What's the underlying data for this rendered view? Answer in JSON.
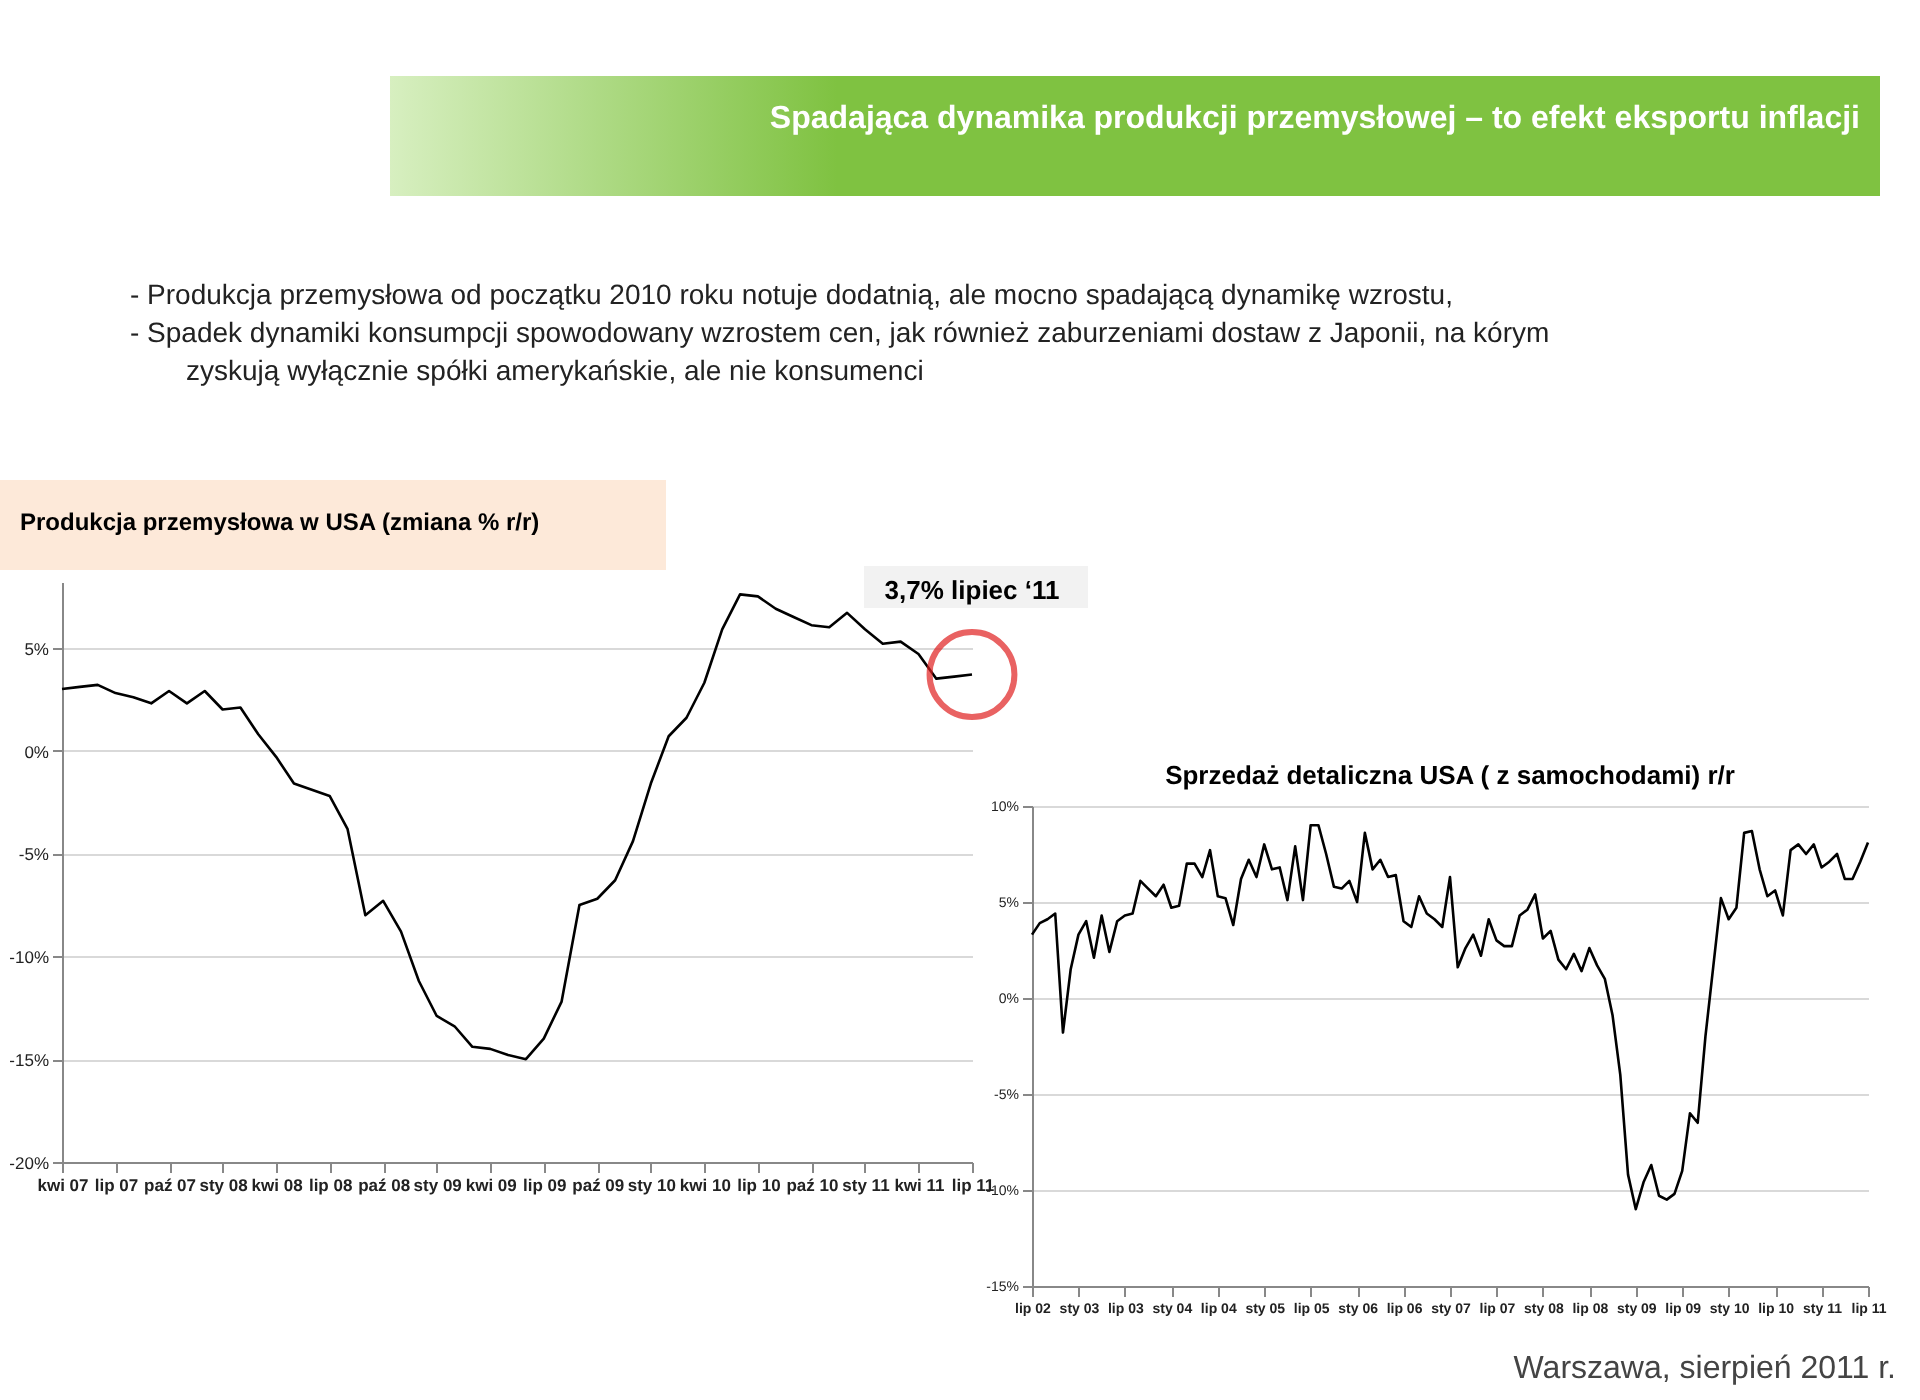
{
  "chart_data": [
    {
      "type": "line",
      "title": "Produkcja przemysłowa w USA (zmiana % r/r)",
      "annotations": [
        "Spadająca dynamika produkcji przemysłowej – to efekt eksportu inflacji",
        "- Produkcja przemysłowa od początku 2010 roku notuje dodatnią, ale mocno spadającą dynamikę wzrostu,",
        "- Spadek dynamiki konsumpcji  spowodowany wzrostem cen, jak również zaburzeniami dostaw z Japonii, na kórym zyskują wyłącznie spółki amerykańskie, ale nie konsumenci",
        {
          "text": "3,7% lipiec ‘11",
          "x": "lip 11",
          "y": 3.7
        },
        "Warszawa, sierpień 2011 r."
      ],
      "categories": [
        "kwi 07",
        null,
        null,
        "lip 07",
        null,
        null,
        "paź 07",
        null,
        null,
        "sty 08",
        null,
        null,
        "kwi 08",
        null,
        null,
        "lip 08",
        null,
        null,
        "paź 08",
        null,
        null,
        "sty 09",
        null,
        null,
        "kwi 09",
        null,
        null,
        "lip 09",
        null,
        null,
        "paź 09",
        null,
        null,
        "sty 10",
        null,
        null,
        "kwi 10",
        null,
        null,
        "lip 10",
        null,
        null,
        "paź 10",
        null,
        null,
        "sty 11",
        null,
        null,
        "kwi 11",
        null,
        null,
        "lip 11"
      ],
      "series": [
        {
          "color": "#000000",
          "values": [
            3.0,
            3.1,
            3.2,
            2.8,
            2.6,
            2.3,
            2.9,
            2.3,
            2.9,
            2.0,
            2.1,
            0.8,
            -0.3,
            -1.6,
            -1.9,
            -2.2,
            -3.8,
            -8.0,
            -7.3,
            -8.8,
            -11.2,
            -12.9,
            -13.4,
            -14.4,
            -14.5,
            -14.8,
            -15.0,
            -14.0,
            -12.2,
            -7.5,
            -7.2,
            -6.3,
            -4.4,
            -1.6,
            0.7,
            1.6,
            3.3,
            5.9,
            7.6,
            7.5,
            6.9,
            6.5,
            6.1,
            6.0,
            6.7,
            5.9,
            5.2,
            5.3,
            4.7,
            3.5,
            3.6,
            3.7
          ]
        }
      ],
      "ylim": [
        -20,
        8.2
      ],
      "yticks": [
        {
          "value": -20,
          "label": "-20%"
        },
        {
          "value": -15,
          "label": "-15%"
        },
        {
          "value": -10,
          "label": "-10%"
        },
        {
          "value": -5,
          "label": "-5%"
        },
        {
          "value": 0,
          "label": "0%"
        },
        {
          "value": 5,
          "label": "5%"
        }
      ],
      "grid": "y"
    },
    {
      "type": "line",
      "title": "Sprzedaż detaliczna USA ( z samochodami) r/r",
      "categories": [
        "lip 02",
        null,
        null,
        null,
        null,
        null,
        "sty 03",
        null,
        null,
        null,
        null,
        null,
        "lip 03",
        null,
        null,
        null,
        null,
        null,
        "sty 04",
        null,
        null,
        null,
        null,
        null,
        "lip 04",
        null,
        null,
        null,
        null,
        null,
        "sty 05",
        null,
        null,
        null,
        null,
        null,
        "lip 05",
        null,
        null,
        null,
        null,
        null,
        "sty 06",
        null,
        null,
        null,
        null,
        null,
        "lip 06",
        null,
        null,
        null,
        null,
        null,
        "sty 07",
        null,
        null,
        null,
        null,
        null,
        "lip 07",
        null,
        null,
        null,
        null,
        null,
        "sty 08",
        null,
        null,
        null,
        null,
        null,
        "lip 08",
        null,
        null,
        null,
        null,
        null,
        "sty 09",
        null,
        null,
        null,
        null,
        null,
        "lip 09",
        null,
        null,
        null,
        null,
        null,
        "sty 10",
        null,
        null,
        null,
        null,
        null,
        "lip 10",
        null,
        null,
        null,
        null,
        null,
        "sty 11",
        null,
        null,
        null,
        null,
        null,
        "lip 11"
      ],
      "series": [
        {
          "color": "#000000",
          "values": [
            3.3,
            3.9,
            4.1,
            4.4,
            -1.8,
            1.5,
            3.3,
            4.0,
            2.1,
            4.3,
            2.4,
            4.0,
            4.3,
            4.4,
            6.1,
            5.7,
            5.3,
            5.9,
            4.7,
            4.8,
            7.0,
            7.0,
            6.3,
            7.7,
            5.3,
            5.2,
            3.8,
            6.2,
            7.2,
            6.3,
            8.0,
            6.7,
            6.8,
            5.1,
            7.9,
            5.1,
            9.0,
            9.0,
            7.5,
            5.8,
            5.7,
            6.1,
            5.0,
            8.6,
            6.7,
            7.2,
            6.3,
            6.4,
            4.0,
            3.7,
            5.3,
            4.4,
            4.1,
            3.7,
            6.3,
            1.6,
            2.6,
            3.3,
            2.2,
            4.1,
            3.0,
            2.7,
            2.7,
            4.3,
            4.6,
            5.4,
            3.1,
            3.5,
            2.0,
            1.5,
            2.3,
            1.4,
            2.6,
            1.7,
            1.0,
            -0.9,
            -4.0,
            -9.2,
            -11.0,
            -9.6,
            -8.7,
            -10.3,
            -10.5,
            -10.2,
            -9.0,
            -6.0,
            -6.5,
            -2.0,
            1.6,
            5.2,
            4.1,
            4.7,
            8.6,
            8.7,
            6.7,
            5.3,
            5.6,
            4.3,
            7.7,
            8.0,
            7.5,
            8.0,
            6.8,
            7.1,
            7.5,
            6.2,
            6.2,
            7.1,
            8.1
          ]
        }
      ],
      "ylim": [
        -15,
        10
      ],
      "yticks": [
        {
          "value": -15,
          "label": "-15%"
        },
        {
          "value": -10,
          "label": "-10%"
        },
        {
          "value": -5,
          "label": "-5%"
        },
        {
          "value": 0,
          "label": "0%"
        },
        {
          "value": 5,
          "label": "5%"
        },
        {
          "value": 10,
          "label": "10%"
        }
      ],
      "grid": "y"
    }
  ]
}
